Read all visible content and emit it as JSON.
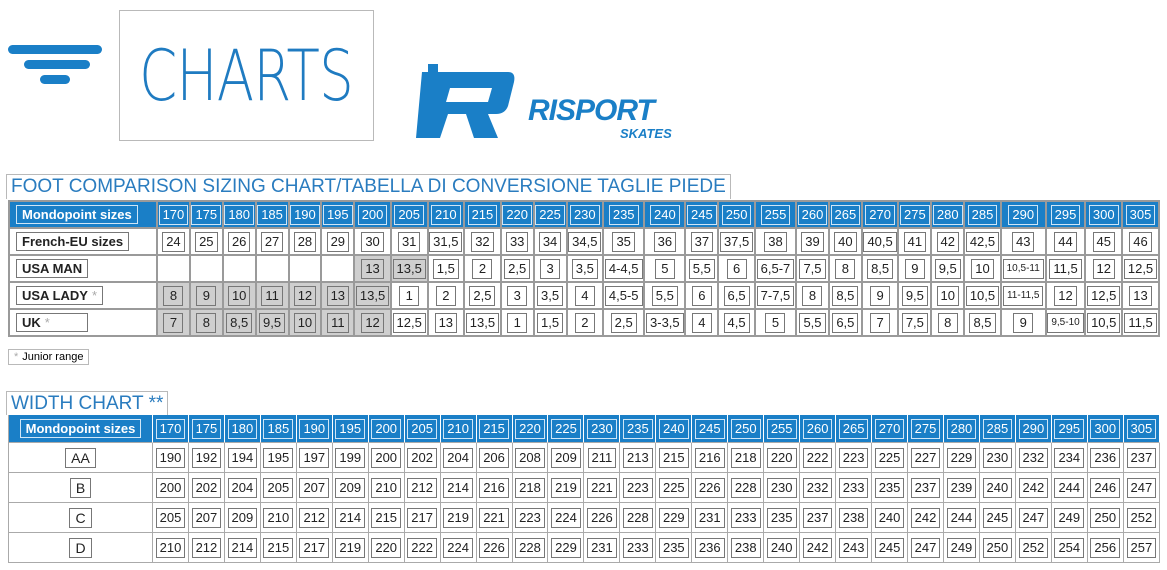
{
  "header": {
    "title": "CHARTS",
    "brand_logo": "RISPORT",
    "brand_sub": "SKATES",
    "accent": "#1a7fc7"
  },
  "foot_chart": {
    "title": "FOOT COMPARISON SIZING CHART/TABELLA DI CONVERSIONE TAGLIE PIEDE",
    "header_label": "Mondopoint sizes",
    "columns": [
      "170",
      "175",
      "180",
      "185",
      "190",
      "195",
      "200",
      "205",
      "210",
      "215",
      "220",
      "225",
      "230",
      "235",
      "240",
      "245",
      "250",
      "255",
      "260",
      "265",
      "270",
      "275",
      "280",
      "285",
      "290",
      "295",
      "300",
      "305"
    ],
    "rows": [
      {
        "label": "French-EU sizes",
        "star": false,
        "junior_columns": [],
        "values": [
          "24",
          "25",
          "26",
          "27",
          "28",
          "29",
          "30",
          "31",
          "31,5",
          "32",
          "33",
          "34",
          "34,5",
          "35",
          "36",
          "37",
          "37,5",
          "38",
          "39",
          "40",
          "40,5",
          "41",
          "42",
          "42,5",
          "43",
          "44",
          "45",
          "46"
        ]
      },
      {
        "label": "USA MAN",
        "star": false,
        "junior_columns": [
          "200",
          "205"
        ],
        "values": [
          "",
          "",
          "",
          "",
          "",
          "",
          "13",
          "13,5",
          "1,5",
          "2",
          "2,5",
          "3",
          "3,5",
          "4-4,5",
          "5",
          "5,5",
          "6",
          "6,5-7",
          "7,5",
          "8",
          "8,5",
          "9",
          "9,5",
          "10",
          "10,5-11",
          "11,5",
          "12",
          "12,5"
        ]
      },
      {
        "label": "USA LADY",
        "star": true,
        "junior_columns": [
          "170",
          "175",
          "180",
          "185",
          "190",
          "195",
          "200"
        ],
        "values": [
          "8",
          "9",
          "10",
          "11",
          "12",
          "13",
          "13,5",
          "1",
          "2",
          "2,5",
          "3",
          "3,5",
          "4",
          "4,5-5",
          "5,5",
          "6",
          "6,5",
          "7-7,5",
          "8",
          "8,5",
          "9",
          "9,5",
          "10",
          "10,5",
          "11-11,5",
          "12",
          "12,5",
          "13"
        ]
      },
      {
        "label": "UK",
        "star": true,
        "junior_columns": [
          "170",
          "175",
          "180",
          "185",
          "190",
          "195",
          "200"
        ],
        "values": [
          "7",
          "8",
          "8,5",
          "9,5",
          "10",
          "11",
          "12",
          "12,5",
          "13",
          "13,5",
          "1",
          "1,5",
          "2",
          "2,5",
          "3-3,5",
          "4",
          "4,5",
          "5",
          "5,5",
          "6,5",
          "7",
          "7,5",
          "8",
          "8,5",
          "9",
          "9,5-10",
          "10,5",
          "11,5"
        ]
      }
    ],
    "star_symbol": "*",
    "junior_note": "Junior range",
    "junior_color": "#cfcfcf"
  },
  "width_chart": {
    "title": "WIDTH CHART **",
    "header_label": "Mondopoint sizes",
    "columns": [
      "170",
      "175",
      "180",
      "185",
      "190",
      "195",
      "200",
      "205",
      "210",
      "215",
      "220",
      "225",
      "230",
      "235",
      "240",
      "245",
      "250",
      "255",
      "260",
      "265",
      "270",
      "275",
      "280",
      "285",
      "290",
      "295",
      "300",
      "305"
    ],
    "rows": [
      {
        "label": "AA",
        "values": [
          "190",
          "192",
          "194",
          "195",
          "197",
          "199",
          "200",
          "202",
          "204",
          "206",
          "208",
          "209",
          "211",
          "213",
          "215",
          "216",
          "218",
          "220",
          "222",
          "223",
          "225",
          "227",
          "229",
          "230",
          "232",
          "234",
          "236",
          "237"
        ]
      },
      {
        "label": "B",
        "values": [
          "200",
          "202",
          "204",
          "205",
          "207",
          "209",
          "210",
          "212",
          "214",
          "216",
          "218",
          "219",
          "221",
          "223",
          "225",
          "226",
          "228",
          "230",
          "232",
          "233",
          "235",
          "237",
          "239",
          "240",
          "242",
          "244",
          "246",
          "247"
        ]
      },
      {
        "label": "C",
        "values": [
          "205",
          "207",
          "209",
          "210",
          "212",
          "214",
          "215",
          "217",
          "219",
          "221",
          "223",
          "224",
          "226",
          "228",
          "229",
          "231",
          "233",
          "235",
          "237",
          "238",
          "240",
          "242",
          "244",
          "245",
          "247",
          "249",
          "250",
          "252"
        ]
      },
      {
        "label": "D",
        "values": [
          "210",
          "212",
          "214",
          "215",
          "217",
          "219",
          "220",
          "222",
          "224",
          "226",
          "228",
          "229",
          "231",
          "233",
          "235",
          "236",
          "238",
          "240",
          "242",
          "243",
          "245",
          "247",
          "249",
          "250",
          "252",
          "254",
          "256",
          "257"
        ]
      }
    ]
  }
}
